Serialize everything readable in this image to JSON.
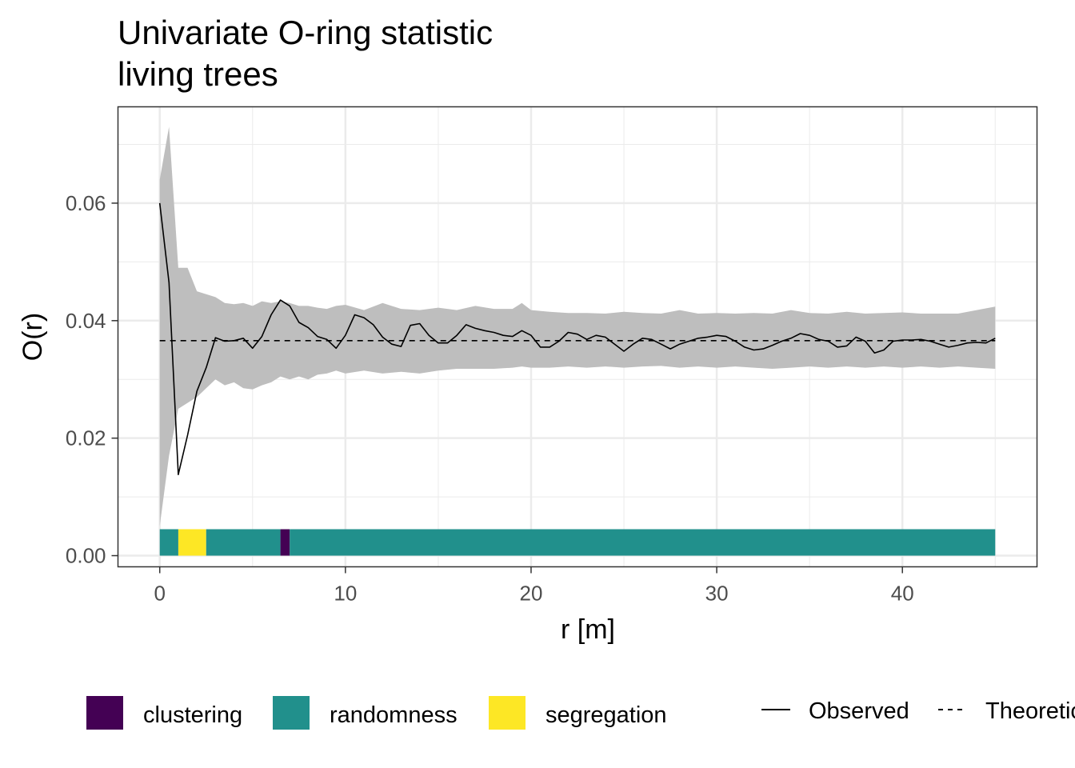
{
  "chart_data": {
    "type": "line",
    "title": "Univariate O-ring statistic",
    "subtitle": "living trees",
    "xlabel": "r [m]",
    "ylabel": "O(r)",
    "xlim": [
      -2.25,
      47.25
    ],
    "ylim": [
      -0.0019,
      0.0764
    ],
    "x_ticks": [
      0,
      10,
      20,
      30,
      40
    ],
    "y_ticks": [
      0.0,
      0.02,
      0.04,
      0.06
    ],
    "x_tick_labels": [
      "0",
      "10",
      "20",
      "30",
      "40"
    ],
    "y_tick_labels": [
      "0.00",
      "0.02",
      "0.04",
      "0.06"
    ],
    "grid": true,
    "legend_position": "bottom",
    "theoretical": {
      "name": "Theoretical",
      "value": 0.0366,
      "x_range": [
        0,
        45
      ]
    },
    "observed": {
      "name": "Observed",
      "x": [
        0,
        0.5,
        1,
        1.5,
        2,
        2.5,
        3,
        3.5,
        4,
        4.5,
        5,
        5.5,
        6,
        6.5,
        7,
        7.5,
        8,
        8.5,
        9,
        9.5,
        10,
        10.5,
        11,
        11.5,
        12,
        12.5,
        13,
        13.5,
        14,
        14.5,
        15,
        15.5,
        16,
        16.5,
        17,
        17.5,
        18,
        18.5,
        19,
        19.5,
        20,
        20.5,
        21,
        21.5,
        22,
        22.5,
        23,
        23.5,
        24,
        24.5,
        25,
        25.5,
        26,
        26.5,
        27,
        27.5,
        28,
        28.5,
        29,
        29.5,
        30,
        30.5,
        31,
        31.5,
        32,
        32.5,
        33,
        33.5,
        34,
        34.5,
        35,
        35.5,
        36,
        36.5,
        37,
        37.5,
        38,
        38.5,
        39,
        39.5,
        40,
        40.5,
        41,
        41.5,
        42,
        42.5,
        43,
        43.5,
        44,
        44.5,
        45
      ],
      "y": [
        0.06,
        0.0465,
        0.0138,
        0.0205,
        0.028,
        0.032,
        0.0371,
        0.0365,
        0.0366,
        0.037,
        0.0353,
        0.0373,
        0.041,
        0.0435,
        0.0425,
        0.0397,
        0.0388,
        0.0373,
        0.0368,
        0.0353,
        0.0375,
        0.041,
        0.0405,
        0.0393,
        0.0372,
        0.036,
        0.0356,
        0.0392,
        0.0395,
        0.0375,
        0.0362,
        0.0362,
        0.0375,
        0.0393,
        0.0387,
        0.0383,
        0.038,
        0.0375,
        0.0373,
        0.0383,
        0.0375,
        0.0355,
        0.0355,
        0.0365,
        0.038,
        0.0377,
        0.0368,
        0.0375,
        0.0372,
        0.036,
        0.0348,
        0.036,
        0.037,
        0.0368,
        0.036,
        0.0352,
        0.036,
        0.0365,
        0.037,
        0.0372,
        0.0375,
        0.0373,
        0.0365,
        0.0355,
        0.035,
        0.0352,
        0.0358,
        0.0365,
        0.037,
        0.0378,
        0.0375,
        0.0368,
        0.0365,
        0.0355,
        0.0357,
        0.0372,
        0.0365,
        0.0345,
        0.035,
        0.0365,
        0.0367,
        0.0367,
        0.0368,
        0.0365,
        0.036,
        0.0355,
        0.0358,
        0.0362,
        0.0363,
        0.0362,
        0.037
      ]
    },
    "envelope": {
      "x": [
        0,
        0.5,
        1,
        1.5,
        2,
        2.5,
        3,
        3.5,
        4,
        4.5,
        5,
        5.5,
        6,
        6.5,
        7,
        7.5,
        8,
        8.5,
        9,
        9.5,
        10,
        11,
        12,
        13,
        14,
        15,
        16,
        17,
        18,
        19,
        19.5,
        20,
        21,
        22,
        23,
        24,
        25,
        26,
        27,
        28,
        29,
        30,
        31,
        32,
        33,
        34,
        35,
        36,
        37,
        38,
        39,
        40,
        41,
        42,
        43,
        44,
        45
      ],
      "hi": [
        0.064,
        0.073,
        0.049,
        0.049,
        0.045,
        0.0445,
        0.044,
        0.043,
        0.0428,
        0.043,
        0.0425,
        0.0433,
        0.043,
        0.0433,
        0.043,
        0.0425,
        0.0425,
        0.0422,
        0.042,
        0.0425,
        0.0427,
        0.0418,
        0.043,
        0.042,
        0.0418,
        0.0422,
        0.0418,
        0.0425,
        0.042,
        0.042,
        0.043,
        0.0418,
        0.0415,
        0.0413,
        0.0413,
        0.0412,
        0.0415,
        0.0413,
        0.0412,
        0.0418,
        0.0412,
        0.0413,
        0.0412,
        0.0413,
        0.0412,
        0.0418,
        0.0413,
        0.0412,
        0.0415,
        0.0412,
        0.0413,
        0.0414,
        0.0412,
        0.0412,
        0.0412,
        0.0418,
        0.0424
      ],
      "lo": [
        0.005,
        0.017,
        0.025,
        0.026,
        0.027,
        0.0285,
        0.03,
        0.029,
        0.0295,
        0.0285,
        0.0283,
        0.029,
        0.0295,
        0.0305,
        0.03,
        0.0305,
        0.03,
        0.0308,
        0.031,
        0.0315,
        0.031,
        0.0315,
        0.031,
        0.0313,
        0.031,
        0.0315,
        0.0318,
        0.0318,
        0.0318,
        0.032,
        0.0322,
        0.032,
        0.032,
        0.0322,
        0.032,
        0.0322,
        0.032,
        0.0322,
        0.0323,
        0.032,
        0.0322,
        0.032,
        0.0322,
        0.032,
        0.0318,
        0.032,
        0.0322,
        0.032,
        0.0322,
        0.032,
        0.0322,
        0.032,
        0.0322,
        0.032,
        0.0322,
        0.032,
        0.0318
      ]
    },
    "classification_bar": {
      "y_range": [
        0.0,
        0.0045
      ],
      "segments": [
        {
          "from": 0,
          "to": 1,
          "class": "randomness"
        },
        {
          "from": 1,
          "to": 2.5,
          "class": "segregation"
        },
        {
          "from": 2.5,
          "to": 6.5,
          "class": "randomness"
        },
        {
          "from": 6.5,
          "to": 7,
          "class": "clustering"
        },
        {
          "from": 7,
          "to": 45,
          "class": "randomness"
        }
      ]
    },
    "fill_legend": [
      {
        "label": "clustering",
        "color": "#440154"
      },
      {
        "label": "randomness",
        "color": "#21908C"
      },
      {
        "label": "segregation",
        "color": "#FDE725"
      }
    ],
    "line_legend": [
      {
        "label": "Observed",
        "style": "solid"
      },
      {
        "label": "Theoretical",
        "style": "dashed"
      }
    ]
  },
  "colors": {
    "envelope": "#bebebe",
    "grid": "#ebebeb",
    "panel_border": "#333333",
    "line": "#000000"
  }
}
